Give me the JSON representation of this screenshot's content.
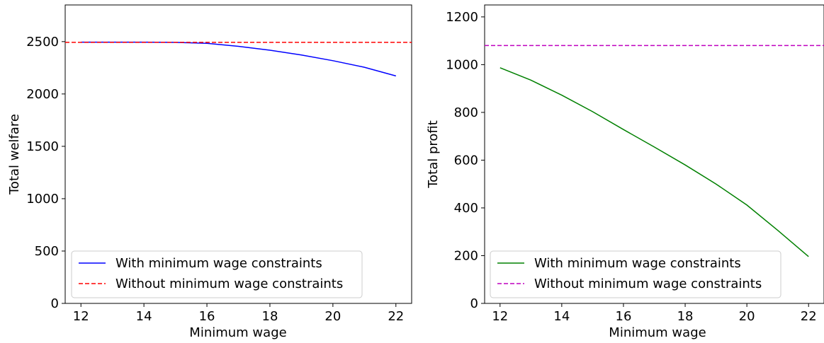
{
  "chart_data": [
    {
      "type": "line",
      "title": "",
      "xlabel": "Minimum wage",
      "ylabel": "Total welfare",
      "xlim": [
        11.5,
        22.5
      ],
      "ylim": [
        0,
        2850
      ],
      "xticks": [
        12,
        14,
        16,
        18,
        20,
        22
      ],
      "yticks": [
        0,
        500,
        1000,
        1500,
        2000,
        2500
      ],
      "grid": false,
      "legend_position": "lower-left",
      "series": [
        {
          "name": "With minimum wage constraints",
          "color": "#0000ff",
          "style": "solid",
          "x": [
            12,
            13,
            14,
            15,
            16,
            17,
            18,
            19,
            20,
            21,
            22
          ],
          "y": [
            2495,
            2495,
            2495,
            2493,
            2483,
            2455,
            2418,
            2372,
            2318,
            2255,
            2172
          ]
        },
        {
          "name": "Without minimum wage constraints",
          "color": "#ff0000",
          "style": "dashed",
          "x": [
            11.5,
            22.5
          ],
          "y": [
            2493,
            2493
          ]
        }
      ]
    },
    {
      "type": "line",
      "title": "",
      "xlabel": "Minimum wage",
      "ylabel": "Total profit",
      "xlim": [
        11.5,
        22.5
      ],
      "ylim": [
        0,
        1250
      ],
      "xticks": [
        12,
        14,
        16,
        18,
        20,
        22
      ],
      "yticks": [
        0,
        200,
        400,
        600,
        800,
        1000,
        1200
      ],
      "grid": false,
      "legend_position": "lower-left",
      "series": [
        {
          "name": "With minimum wage constraints",
          "color": "#008000",
          "style": "solid",
          "x": [
            12,
            13,
            14,
            15,
            16,
            17,
            18,
            19,
            20,
            21,
            22
          ],
          "y": [
            987,
            935,
            872,
            803,
            728,
            655,
            580,
            500,
            412,
            306,
            196
          ]
        },
        {
          "name": "Without minimum wage constraints",
          "color": "#bf00bf",
          "style": "dashed",
          "x": [
            11.5,
            22.5
          ],
          "y": [
            1080,
            1080
          ]
        }
      ]
    }
  ]
}
